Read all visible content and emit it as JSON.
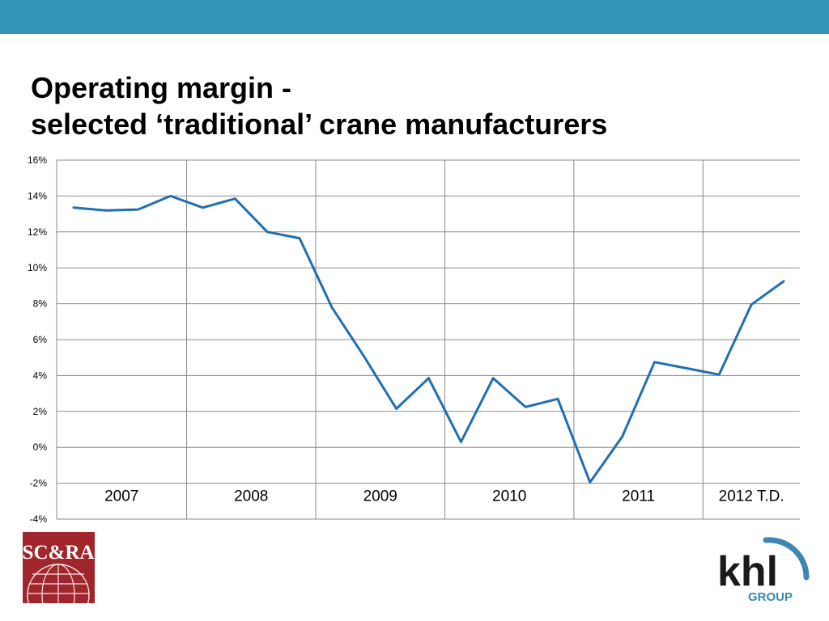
{
  "slide": {
    "title_line1": "Operating margin -",
    "title_line2": "selected ‘traditional’ crane manufacturers",
    "header_color": "#3395b8"
  },
  "logos": {
    "left": {
      "text": "SC&RA",
      "color": "#a0262c"
    },
    "right": {
      "text": "khl",
      "subtext": "GROUP",
      "color": "#1a1a1a",
      "accent": "#3d87b0"
    }
  },
  "chart_data": {
    "type": "line",
    "title": "",
    "xlabel": "",
    "ylabel": "",
    "ylim": [
      -4,
      16
    ],
    "yticks": [
      16,
      14,
      12,
      10,
      8,
      6,
      4,
      2,
      0,
      -2,
      -4
    ],
    "ytick_labels": [
      "16%",
      "14%",
      "12%",
      "10%",
      "8%",
      "6%",
      "4%",
      "2%",
      "0%",
      "-2%",
      "-4%"
    ],
    "grid": true,
    "line_color": "#1f6fb2",
    "year_labels": [
      "2007",
      "2008",
      "2009",
      "2010",
      "2011",
      "2012 T.D."
    ],
    "year_quarter_counts": [
      4,
      4,
      4,
      4,
      4,
      3
    ],
    "series": [
      {
        "values": [
          13.35,
          13.2,
          13.25,
          14.0,
          13.35,
          13.85,
          12.0,
          11.65,
          7.8,
          5.05,
          2.15,
          3.85,
          0.3,
          3.85,
          2.25,
          2.7,
          -1.95,
          0.6,
          4.75,
          4.4,
          4.05,
          7.95,
          9.25
        ]
      }
    ]
  }
}
